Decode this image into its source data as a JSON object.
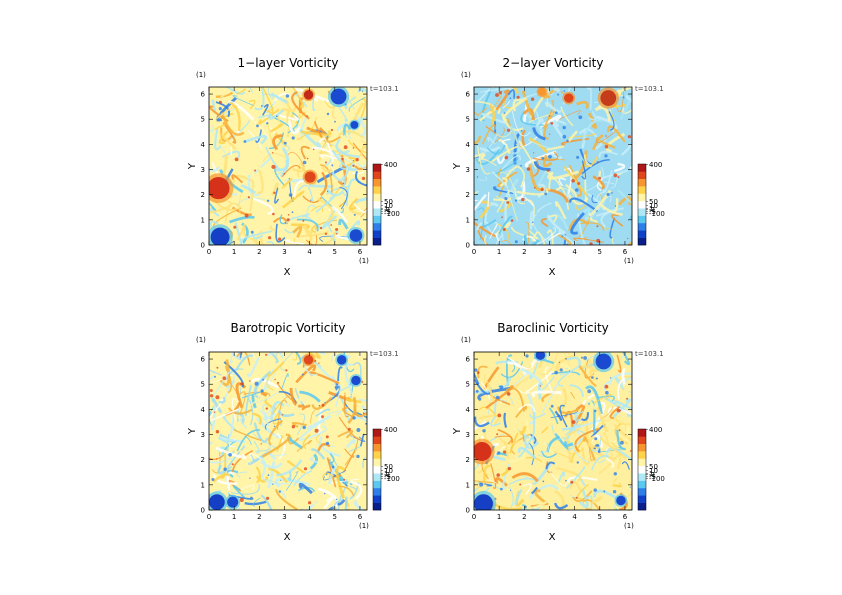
{
  "chart_data": [
    {
      "type": "heatmap",
      "title": "1−layer Vorticity",
      "xlabel": "X",
      "ylabel": "Y",
      "x_unit": "(1)",
      "y_unit": "(1)",
      "time_label": "t=103.1",
      "xlim": [
        0,
        6.28
      ],
      "ylim": [
        0,
        6.28
      ],
      "x_ticks": [
        "0",
        "1",
        "2",
        "3",
        "4",
        "5",
        "6"
      ],
      "y_ticks": [
        "0",
        "1",
        "2",
        "3",
        "4",
        "5",
        "6"
      ],
      "colorbar_ticks": [
        "400",
        "50",
        "10",
        "1",
        "-1",
        "-5",
        "-100"
      ],
      "colorbar_colors": [
        "#0a1e8c",
        "#1040c8",
        "#2f7fe8",
        "#5ac8f0",
        "#aee8f6",
        "#ffffff",
        "#fff4a8",
        "#ffd24a",
        "#f7962e",
        "#e0461c",
        "#b01818"
      ],
      "grid": false
    },
    {
      "type": "heatmap",
      "title": "2−layer Vorticity",
      "xlabel": "X",
      "ylabel": "Y",
      "x_unit": "(1)",
      "y_unit": "(1)",
      "time_label": "t=103.1",
      "xlim": [
        0,
        6.28
      ],
      "ylim": [
        0,
        6.28
      ],
      "x_ticks": [
        "0",
        "1",
        "2",
        "3",
        "4",
        "5",
        "6"
      ],
      "y_ticks": [
        "0",
        "1",
        "2",
        "3",
        "4",
        "5",
        "6"
      ],
      "colorbar_ticks": [
        "400",
        "50",
        "10",
        "1",
        "-1",
        "-5",
        "-100"
      ],
      "colorbar_colors": [
        "#0a1e8c",
        "#1040c8",
        "#2f7fe8",
        "#5ac8f0",
        "#aee8f6",
        "#ffffff",
        "#fff4a8",
        "#ffd24a",
        "#f7962e",
        "#e0461c",
        "#b01818"
      ],
      "grid": false
    },
    {
      "type": "heatmap",
      "title": "Barotropic Vorticity",
      "xlabel": "X",
      "ylabel": "Y",
      "x_unit": "(1)",
      "y_unit": "(1)",
      "time_label": "t=103.1",
      "xlim": [
        0,
        6.28
      ],
      "ylim": [
        0,
        6.28
      ],
      "x_ticks": [
        "0",
        "1",
        "2",
        "3",
        "4",
        "5",
        "6"
      ],
      "y_ticks": [
        "0",
        "1",
        "2",
        "3",
        "4",
        "5",
        "6"
      ],
      "colorbar_ticks": [
        "400",
        "50",
        "10",
        "1",
        "-1",
        "-5",
        "-100"
      ],
      "colorbar_colors": [
        "#0a1e8c",
        "#1040c8",
        "#2f7fe8",
        "#5ac8f0",
        "#aee8f6",
        "#ffffff",
        "#fff4a8",
        "#ffd24a",
        "#f7962e",
        "#e0461c",
        "#b01818"
      ],
      "grid": false
    },
    {
      "type": "heatmap",
      "title": "Baroclinic Vorticity",
      "xlabel": "X",
      "ylabel": "Y",
      "x_unit": "(1)",
      "y_unit": "(1)",
      "time_label": "t=103.1",
      "xlim": [
        0,
        6.28
      ],
      "ylim": [
        0,
        6.28
      ],
      "x_ticks": [
        "0",
        "1",
        "2",
        "3",
        "4",
        "5",
        "6"
      ],
      "y_ticks": [
        "0",
        "1",
        "2",
        "3",
        "4",
        "5",
        "6"
      ],
      "colorbar_ticks": [
        "400",
        "50",
        "10",
        "1",
        "-1",
        "-5",
        "-100"
      ],
      "colorbar_colors": [
        "#0a1e8c",
        "#1040c8",
        "#2f7fe8",
        "#5ac8f0",
        "#aee8f6",
        "#ffffff",
        "#fff4a8",
        "#ffd24a",
        "#f7962e",
        "#e0461c",
        "#b01818"
      ],
      "grid": false
    }
  ]
}
